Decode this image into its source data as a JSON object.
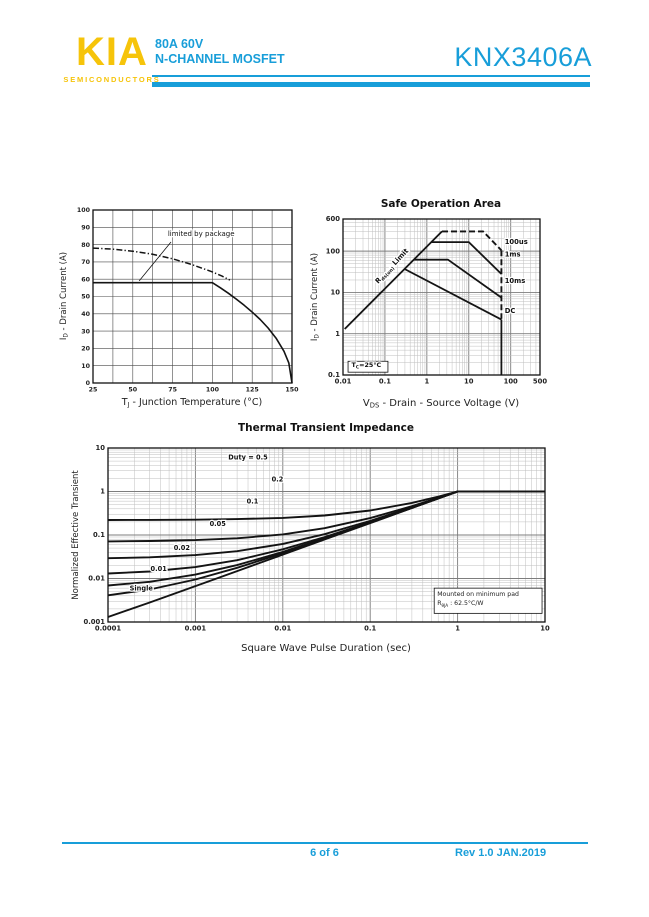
{
  "colors": {
    "accent": "#189ED9",
    "logo_yellow": "#F6C40A",
    "curve": "#141414",
    "grid_major": "#7d7d7d",
    "grid_minor": "#bfbfbf",
    "grid_linear": "#4a4a4a"
  },
  "header": {
    "logo_text": "KIA",
    "logo_sub": "SEMICONDUCTORS",
    "subtitle_line1": "80A 60V",
    "subtitle_line2": "N-CHANNEL MOSFET",
    "part_number": "KNX3406A"
  },
  "footer": {
    "page_label": "6 of 6",
    "rev_label": "Rev 1.0 JAN.2019"
  },
  "chart_data": [
    {
      "name": "junction",
      "type": "line",
      "scale": "linear",
      "title": "",
      "xlabel": "TJ - Junction Temperature (°C)",
      "ylabel": "ID - Drain Current (A)",
      "xlabel_parts": [
        {
          "t": "T"
        },
        {
          "t": "J",
          "sub": true
        },
        {
          "t": " - Junction Temperature (°C)"
        }
      ],
      "ylabel_parts": [
        {
          "t": "I"
        },
        {
          "t": "D",
          "sub": true
        },
        {
          "t": " - Drain Current (A)"
        }
      ],
      "xlim": [
        25,
        150
      ],
      "ylim": [
        0,
        100
      ],
      "x_minor_step": 12.5,
      "y_minor_step": 10,
      "x_ticks": [
        "25",
        "50",
        "75",
        "100",
        "125",
        "150"
      ],
      "y_ticks": [
        "0",
        "10",
        "20",
        "30",
        "40",
        "50",
        "60",
        "70",
        "80",
        "90",
        "100"
      ],
      "series": [
        {
          "name": "package-limit",
          "dash": "solid",
          "width": 1.6,
          "points": [
            [
              25,
              58
            ],
            [
              95,
              58
            ],
            [
              100,
              58
            ],
            [
              105,
              55.0
            ],
            [
              110,
              51.9
            ],
            [
              115,
              48.5
            ],
            [
              120,
              44.9
            ],
            [
              125,
              41.0
            ],
            [
              130,
              36.7
            ],
            [
              135,
              31.8
            ],
            [
              140,
              25.9
            ],
            [
              145,
              18.3
            ],
            [
              148,
              11.6
            ],
            [
              150,
              0
            ]
          ]
        },
        {
          "name": "silicon-limit",
          "dash": "dashdot",
          "width": 1.5,
          "points": [
            [
              25,
              78
            ],
            [
              37,
              77.4
            ],
            [
              50,
              76.2
            ],
            [
              62,
              74.5
            ],
            [
              75,
              71.8
            ],
            [
              87,
              68.5
            ],
            [
              100,
              64.2
            ],
            [
              106,
              61.8
            ],
            [
              111,
              59.5
            ]
          ]
        },
        {
          "name": "annotation-leader",
          "dash": "solid",
          "width": 0.8,
          "points": [
            [
              74,
              81.5
            ],
            [
              54,
              59
            ]
          ]
        }
      ],
      "annotations": [
        {
          "name": "limited-by-package-label",
          "text": "limited by package",
          "x": 72,
          "y": 85,
          "anchor": "start",
          "size": 7,
          "mono": true
        }
      ]
    },
    {
      "name": "soa",
      "type": "line",
      "scale": "loglog",
      "title": "Safe Operation Area",
      "xlabel": "VDS - Drain - Source Voltage (V)",
      "ylabel": "ID - Drain Current (A)",
      "xlabel_parts": [
        {
          "t": "V"
        },
        {
          "t": "DS",
          "sub": true
        },
        {
          "t": " - Drain - Source Voltage (V)"
        }
      ],
      "ylabel_parts": [
        {
          "t": "I"
        },
        {
          "t": "D",
          "sub": true
        },
        {
          "t": " - Drain Current (A)"
        }
      ],
      "xlim": [
        0.01,
        500
      ],
      "ylim": [
        0.1,
        600
      ],
      "x_ticks": [
        "0.01",
        "0.1",
        "1",
        "10",
        "100",
        "500"
      ],
      "y_ticks": [
        "0.1",
        "1",
        "10",
        "100",
        "600"
      ],
      "condition": "TC=25°C",
      "vds_max": 60,
      "series": [
        {
          "name": "rds-on-limit",
          "dash": "solid",
          "width": 1.8,
          "points": [
            [
              0.011,
              1.3
            ],
            [
              2.3,
              300
            ]
          ]
        },
        {
          "name": "pulse-100us",
          "dash": "dash",
          "width": 1.9,
          "points": [
            [
              2.3,
              300
            ],
            [
              22,
              300
            ],
            [
              60,
              105
            ]
          ]
        },
        {
          "name": "vds-limit-dashed",
          "dash": "dash",
          "width": 1.9,
          "points": [
            [
              60,
              105
            ],
            [
              60,
              2.3
            ]
          ]
        },
        {
          "name": "pulse-1ms",
          "dash": "solid",
          "width": 1.8,
          "points": [
            [
              1.28,
              165
            ],
            [
              10,
              165
            ],
            [
              60,
              28
            ]
          ]
        },
        {
          "name": "pulse-10ms",
          "dash": "solid",
          "width": 1.8,
          "points": [
            [
              0.49,
              62
            ],
            [
              3.2,
              62
            ],
            [
              60,
              7.5
            ]
          ]
        },
        {
          "name": "dc",
          "dash": "solid",
          "width": 1.8,
          "points": [
            [
              0.294,
              37
            ],
            [
              60,
              2.2
            ]
          ]
        },
        {
          "name": "vds-limit-solid",
          "dash": "solid",
          "width": 1.8,
          "points": [
            [
              60,
              2.2
            ],
            [
              60,
              0.1
            ]
          ]
        }
      ],
      "annotations": [
        {
          "name": "rds-limit-label",
          "parts": [
            {
              "t": "R"
            },
            {
              "t": "ds(on)",
              "sub": true
            },
            {
              "t": " Limit"
            }
          ],
          "x": 0.16,
          "y": 40,
          "rotate": -47,
          "size": 7,
          "bold": true
        },
        {
          "name": "curve-label-100us",
          "text": "100us",
          "x": 72,
          "y": 150,
          "anchor": "start",
          "size": 6.8,
          "bold": true
        },
        {
          "name": "curve-label-1ms",
          "text": "1ms",
          "x": 72,
          "y": 75,
          "anchor": "start",
          "size": 6.8,
          "bold": true
        },
        {
          "name": "curve-label-10ms",
          "text": "10ms",
          "x": 72,
          "y": 17,
          "anchor": "start",
          "size": 6.8,
          "bold": true
        },
        {
          "name": "curve-label-dc",
          "text": "DC",
          "x": 72,
          "y": 3.2,
          "anchor": "start",
          "size": 6.8,
          "bold": true
        },
        {
          "name": "tc-condition",
          "parts": [
            {
              "t": "T"
            },
            {
              "t": "C",
              "sub": true
            },
            {
              "t": "=25°C"
            }
          ],
          "x": 0.016,
          "y": 0.155,
          "anchor": "start",
          "size": 6.4,
          "bold": true,
          "box": [
            0.0132,
            0.215,
            0.118,
            0.117
          ]
        }
      ]
    },
    {
      "name": "thermal",
      "type": "line",
      "scale": "loglog",
      "title": "Thermal Transient Impedance",
      "xlabel": "Square Wave Pulse Duration (sec)",
      "ylabel": "Normalized Effective Transient",
      "xlabel_parts": [
        {
          "t": "Square Wave Pulse Duration (sec)"
        }
      ],
      "ylabel_parts": [
        {
          "t": "Normalized Effective Transient"
        }
      ],
      "xlim": [
        0.0001,
        10
      ],
      "ylim": [
        0.001,
        10
      ],
      "x_ticks": [
        "0.0001",
        "0.001",
        "0.01",
        "0.1",
        "1",
        "10"
      ],
      "y_ticks": [
        "0.001",
        "0.01",
        "0.1",
        "1",
        "10"
      ],
      "note_line1": "Mounted on minimum pad",
      "note_line2": "RθJA : 62.5°C/W",
      "duty_values": [
        0.5,
        0.2,
        0.1,
        0.05,
        0.02,
        0.01
      ],
      "series": [
        {
          "name": "duty-0p5",
          "dash": "solid",
          "width": 1.9,
          "points": [
            [
              0.0001,
              0.221
            ],
            [
              0.0003,
              0.2222
            ],
            [
              0.001,
              0.2252
            ],
            [
              0.003,
              0.2315
            ],
            [
              0.01,
              0.2477
            ],
            [
              0.03,
              0.2814
            ],
            [
              0.1,
              0.3666
            ],
            [
              0.3,
              0.546
            ],
            [
              0.6,
              0.7582
            ],
            [
              1,
              1
            ],
            [
              2,
              1
            ],
            [
              10,
              1
            ]
          ]
        },
        {
          "name": "duty-0p2",
          "dash": "solid",
          "width": 1.9,
          "points": [
            [
              0.0001,
              0.0712
            ],
            [
              0.0003,
              0.0726
            ],
            [
              0.001,
              0.0762
            ],
            [
              0.003,
              0.0838
            ],
            [
              0.01,
              0.103
            ],
            [
              0.03,
              0.1432
            ],
            [
              0.1,
              0.2448
            ],
            [
              0.3,
              0.4587
            ],
            [
              0.6,
              0.7117
            ],
            [
              1,
              1
            ],
            [
              2,
              1
            ],
            [
              10,
              1
            ]
          ]
        },
        {
          "name": "duty-0p1",
          "dash": "solid",
          "width": 1.9,
          "points": [
            [
              0.0001,
              0.0293
            ],
            [
              0.0003,
              0.0307
            ],
            [
              0.001,
              0.0345
            ],
            [
              0.003,
              0.0424
            ],
            [
              0.01,
              0.0625
            ],
            [
              0.03,
              0.1045
            ],
            [
              0.1,
              0.2107
            ],
            [
              0.3,
              0.4343
            ],
            [
              0.6,
              0.6987
            ],
            [
              1,
              1
            ],
            [
              2,
              1
            ],
            [
              10,
              1
            ]
          ]
        },
        {
          "name": "duty-0p05",
          "dash": "solid",
          "width": 1.9,
          "points": [
            [
              0.0001,
              0.013
            ],
            [
              0.0003,
              0.0145
            ],
            [
              0.001,
              0.0183
            ],
            [
              0.003,
              0.0263
            ],
            [
              0.01,
              0.0468
            ],
            [
              0.03,
              0.0895
            ],
            [
              0.1,
              0.1965
            ],
            [
              0.3,
              0.4232
            ],
            [
              0.6,
              0.6936
            ],
            [
              1,
              1
            ],
            [
              2,
              1
            ],
            [
              10,
              1
            ]
          ]
        },
        {
          "name": "duty-0p02",
          "dash": "solid",
          "width": 1.9,
          "points": [
            [
              0.0001,
              0.0069
            ],
            [
              0.0003,
              0.0084
            ],
            [
              0.001,
              0.0123
            ],
            [
              0.003,
              0.0203
            ],
            [
              0.01,
              0.0409
            ],
            [
              0.03,
              0.0839
            ],
            [
              0.1,
              0.1925
            ],
            [
              0.3,
              0.4213
            ],
            [
              0.6,
              0.6917
            ],
            [
              1,
              1
            ],
            [
              2,
              1
            ],
            [
              10,
              1
            ]
          ]
        },
        {
          "name": "duty-0p01",
          "dash": "solid",
          "width": 1.9,
          "points": [
            [
              0.0001,
              0.0041
            ],
            [
              0.0003,
              0.0056
            ],
            [
              0.001,
              0.0095
            ],
            [
              0.003,
              0.0176
            ],
            [
              0.01,
              0.0382
            ],
            [
              0.03,
              0.0813
            ],
            [
              0.1,
              0.1905
            ],
            [
              0.3,
              0.4196
            ],
            [
              0.6,
              0.6909
            ],
            [
              1,
              1
            ],
            [
              2,
              1
            ],
            [
              10,
              1
            ]
          ]
        },
        {
          "name": "single-pulse",
          "dash": "solid",
          "width": 1.9,
          "points": [
            [
              0.0001,
              0.0013
            ],
            [
              0.0003,
              0.0028
            ],
            [
              0.001,
              0.0067
            ],
            [
              0.003,
              0.0148
            ],
            [
              0.01,
              0.0355
            ],
            [
              0.03,
              0.0787
            ],
            [
              0.1,
              0.188
            ],
            [
              0.3,
              0.418
            ],
            [
              0.6,
              0.69
            ],
            [
              1,
              1
            ],
            [
              2,
              1
            ],
            [
              10,
              1
            ]
          ]
        }
      ],
      "annotations": [
        {
          "name": "duty-label-0p5",
          "text": "Duty =  0.5",
          "x": 0.004,
          "y": 5.5,
          "size": 6.6,
          "bold": true
        },
        {
          "name": "duty-label-0p2",
          "text": "0.2",
          "x": 0.0087,
          "y": 1.7,
          "size": 6.6,
          "bold": true
        },
        {
          "name": "duty-label-0p1",
          "text": "0.1",
          "x": 0.0045,
          "y": 0.53,
          "size": 6.6,
          "bold": true
        },
        {
          "name": "duty-label-0p05",
          "text": "0.05",
          "x": 0.0018,
          "y": 0.16,
          "size": 6.6,
          "bold": true
        },
        {
          "name": "duty-label-0p02",
          "text": "0.02",
          "x": 0.0007,
          "y": 0.045,
          "size": 6.6,
          "bold": true
        },
        {
          "name": "duty-label-0p01",
          "text": "0.01",
          "x": 0.00038,
          "y": 0.015,
          "size": 6.6,
          "bold": true
        },
        {
          "name": "single-label",
          "text": "Single",
          "x": 0.00024,
          "y": 0.0053,
          "size": 6.6,
          "bold": true
        },
        {
          "name": "note-box",
          "box": [
            0.54,
            0.006,
            9.25,
            0.00158
          ],
          "lines": [
            [
              {
                "t": "Mounted on minimum pad"
              }
            ],
            [
              {
                "t": "R"
              },
              {
                "t": "θJA",
                "sub": true
              },
              {
                "t": " : 62.5°C/W"
              }
            ]
          ],
          "size": 6.2
        }
      ]
    }
  ]
}
